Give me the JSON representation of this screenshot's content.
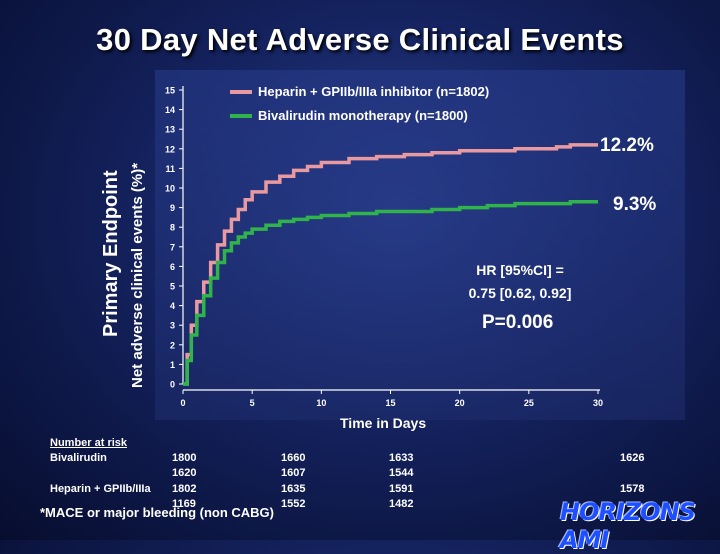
{
  "title": "30 Day Net Adverse Clinical Events",
  "side_label": "Primary Endpoint",
  "chart_data": {
    "type": "line",
    "xlabel": "Time in Days",
    "ylabel": "Net adverse clinical events (%)*",
    "xlim": [
      0,
      30
    ],
    "ylim": [
      0,
      15
    ],
    "xticks": [
      0,
      5,
      10,
      15,
      20,
      25,
      30
    ],
    "yticks": [
      0,
      1,
      2,
      3,
      4,
      5,
      6,
      7,
      8,
      9,
      10,
      11,
      12,
      13,
      14,
      15
    ],
    "grid": false,
    "legend_position": "top",
    "series": [
      {
        "name": "Heparin + GPIIb/IIIa inhibitor (n=1802)",
        "color": "#e99aa0",
        "end_label": "12.2%",
        "x": [
          0,
          0.3,
          0.6,
          1,
          1.5,
          2,
          2.5,
          3,
          3.5,
          4,
          4.5,
          5,
          6,
          7,
          8,
          9,
          10,
          12,
          14,
          16,
          18,
          20,
          22,
          24,
          26,
          27,
          28,
          30
        ],
        "y": [
          0,
          1.5,
          3.0,
          4.2,
          5.2,
          6.2,
          7.1,
          7.8,
          8.4,
          8.9,
          9.4,
          9.8,
          10.3,
          10.6,
          10.9,
          11.1,
          11.3,
          11.5,
          11.6,
          11.7,
          11.8,
          11.9,
          11.9,
          12.0,
          12.0,
          12.1,
          12.2,
          12.2
        ]
      },
      {
        "name": "Bivalirudin monotherapy (n=1800)",
        "color": "#2fb34a",
        "end_label": "9.3%",
        "x": [
          0,
          0.3,
          0.6,
          1,
          1.5,
          2,
          2.5,
          3,
          3.5,
          4,
          4.5,
          5,
          6,
          7,
          8,
          9,
          10,
          12,
          14,
          16,
          18,
          20,
          22,
          24,
          26,
          28,
          30
        ],
        "y": [
          0,
          1.2,
          2.5,
          3.5,
          4.5,
          5.4,
          6.2,
          6.8,
          7.2,
          7.5,
          7.7,
          7.9,
          8.1,
          8.3,
          8.4,
          8.5,
          8.6,
          8.7,
          8.8,
          8.8,
          8.9,
          9.0,
          9.1,
          9.2,
          9.2,
          9.3,
          9.3
        ]
      }
    ],
    "annotations": {
      "hr_line1": "HR [95%CI] =",
      "hr_line2": "0.75 [0.62, 0.92]",
      "pvalue": "P=0.006"
    }
  },
  "risk_table": {
    "header": "Number at risk",
    "rows": [
      {
        "label": "Bivalirudin",
        "values": [
          "1800",
          "1660",
          "1633",
          "1626"
        ],
        "values2": [
          "1620",
          "1607",
          "1544"
        ]
      },
      {
        "label": "Heparin + GPIIb/IIIa",
        "values": [
          "1802",
          "1635",
          "1591",
          "1578"
        ],
        "values2": [
          "1169",
          "1552",
          "1482"
        ]
      }
    ]
  },
  "footnote": "*MACE or major bleeding (non CABG)",
  "logo_text": "HORIZONS AMI"
}
